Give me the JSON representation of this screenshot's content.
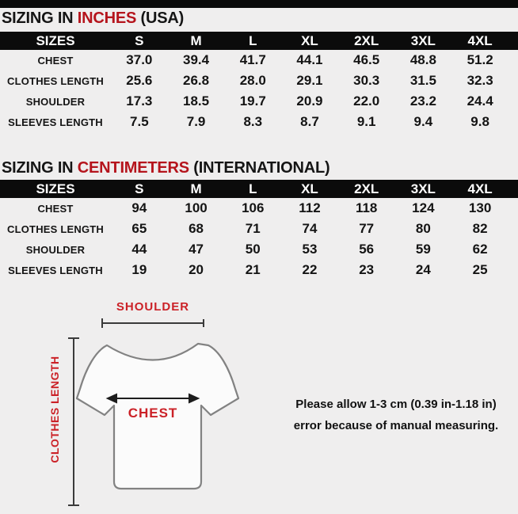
{
  "colors": {
    "page_background": "#efeeee",
    "header_bar": "#0b0b0b",
    "title_accent_red": "#b5141c",
    "diagram_label_red": "#cb2127"
  },
  "tables": [
    {
      "title": {
        "prefix": "SIZING IN ",
        "highlight": "INCHES",
        "suffix": " (USA)"
      },
      "columns": [
        "SIZES",
        "S",
        "M",
        "L",
        "XL",
        "2XL",
        "3XL",
        "4XL"
      ],
      "rows": [
        {
          "label": "CHEST",
          "values": [
            "37.0",
            "39.4",
            "41.7",
            "44.1",
            "46.5",
            "48.8",
            "51.2"
          ]
        },
        {
          "label": "CLOTHES LENGTH",
          "values": [
            "25.6",
            "26.8",
            "28.0",
            "29.1",
            "30.3",
            "31.5",
            "32.3"
          ]
        },
        {
          "label": "SHOULDER",
          "values": [
            "17.3",
            "18.5",
            "19.7",
            "20.9",
            "22.0",
            "23.2",
            "24.4"
          ]
        },
        {
          "label": "SLEEVES LENGTH",
          "values": [
            "7.5",
            "7.9",
            "8.3",
            "8.7",
            "9.1",
            "9.4",
            "9.8"
          ]
        }
      ]
    },
    {
      "title": {
        "prefix": "SIZING IN ",
        "highlight": "CENTIMETERS",
        "suffix": " (INTERNATIONAL)"
      },
      "columns": [
        "SIZES",
        "S",
        "M",
        "L",
        "XL",
        "2XL",
        "3XL",
        "4XL"
      ],
      "rows": [
        {
          "label": "CHEST",
          "values": [
            "94",
            "100",
            "106",
            "112",
            "118",
            "124",
            "130"
          ]
        },
        {
          "label": "CLOTHES LENGTH",
          "values": [
            "65",
            "68",
            "71",
            "74",
            "77",
            "80",
            "82"
          ]
        },
        {
          "label": "SHOULDER",
          "values": [
            "44",
            "47",
            "50",
            "53",
            "56",
            "59",
            "62"
          ]
        },
        {
          "label": "SLEEVES LENGTH",
          "values": [
            "19",
            "20",
            "21",
            "22",
            "23",
            "24",
            "25"
          ]
        }
      ]
    }
  ],
  "diagram": {
    "shoulder_label": "SHOULDER",
    "clothes_length_label": "CLOTHES LENGTH",
    "chest_label": "CHEST",
    "note_line1": "Please allow 1-3 cm (0.39 in-1.18 in)",
    "note_line2": "error because of manual measuring."
  }
}
